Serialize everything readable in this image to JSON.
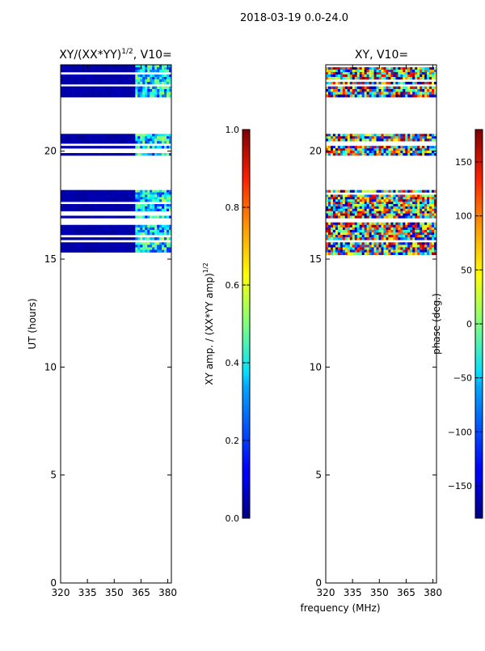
{
  "figure": {
    "suptitle": "2018-03-19 0.0-24.0"
  },
  "chart_data": [
    {
      "type": "heatmap",
      "title": "XY/(XX*YY)",
      "title_sup": "1/2",
      "title_suffix": ", V10=",
      "xlabel": "",
      "ylabel": "UT (hours)",
      "xlim": [
        320,
        382
      ],
      "ylim": [
        0,
        24
      ],
      "xticks": [
        320,
        335,
        350,
        365,
        380
      ],
      "yticks": [
        0,
        5,
        10,
        15,
        20
      ],
      "colorbar": {
        "label": "XY amp. / (XX*YY amp)",
        "label_sup": "1/2",
        "range": [
          0.0,
          1.0
        ],
        "ticks": [
          "0.0",
          "0.2",
          "0.4",
          "0.6",
          "0.8",
          "1.0"
        ]
      },
      "data_bands_hours": [
        [
          15.2,
          16.7
        ],
        [
          16.9,
          18.2
        ],
        [
          19.8,
          20.8
        ],
        [
          22.5,
          23.0
        ],
        [
          23.1,
          24.0
        ]
      ],
      "typical_value_below_362MHz": 0.05,
      "typical_value_above_362MHz": 0.35
    },
    {
      "type": "heatmap",
      "title": "XY",
      "title_suffix": ", V10=",
      "xlabel": "frequency (MHz)",
      "ylabel": "",
      "xlim": [
        320,
        382
      ],
      "ylim": [
        0,
        24
      ],
      "xticks": [
        320,
        335,
        350,
        365,
        380
      ],
      "yticks": [
        0,
        5,
        10,
        15,
        20
      ],
      "colorbar": {
        "label": "phase (deg.)",
        "range": [
          -180,
          180
        ],
        "ticks": [
          "−150",
          "−100",
          "−50",
          "0",
          "50",
          "100",
          "150"
        ]
      },
      "data_bands_hours": [
        [
          15.2,
          16.7
        ],
        [
          16.9,
          18.2
        ],
        [
          19.8,
          20.8
        ],
        [
          22.5,
          23.0
        ],
        [
          23.1,
          24.0
        ]
      ],
      "value_range_deg": [
        -180,
        180
      ]
    }
  ]
}
